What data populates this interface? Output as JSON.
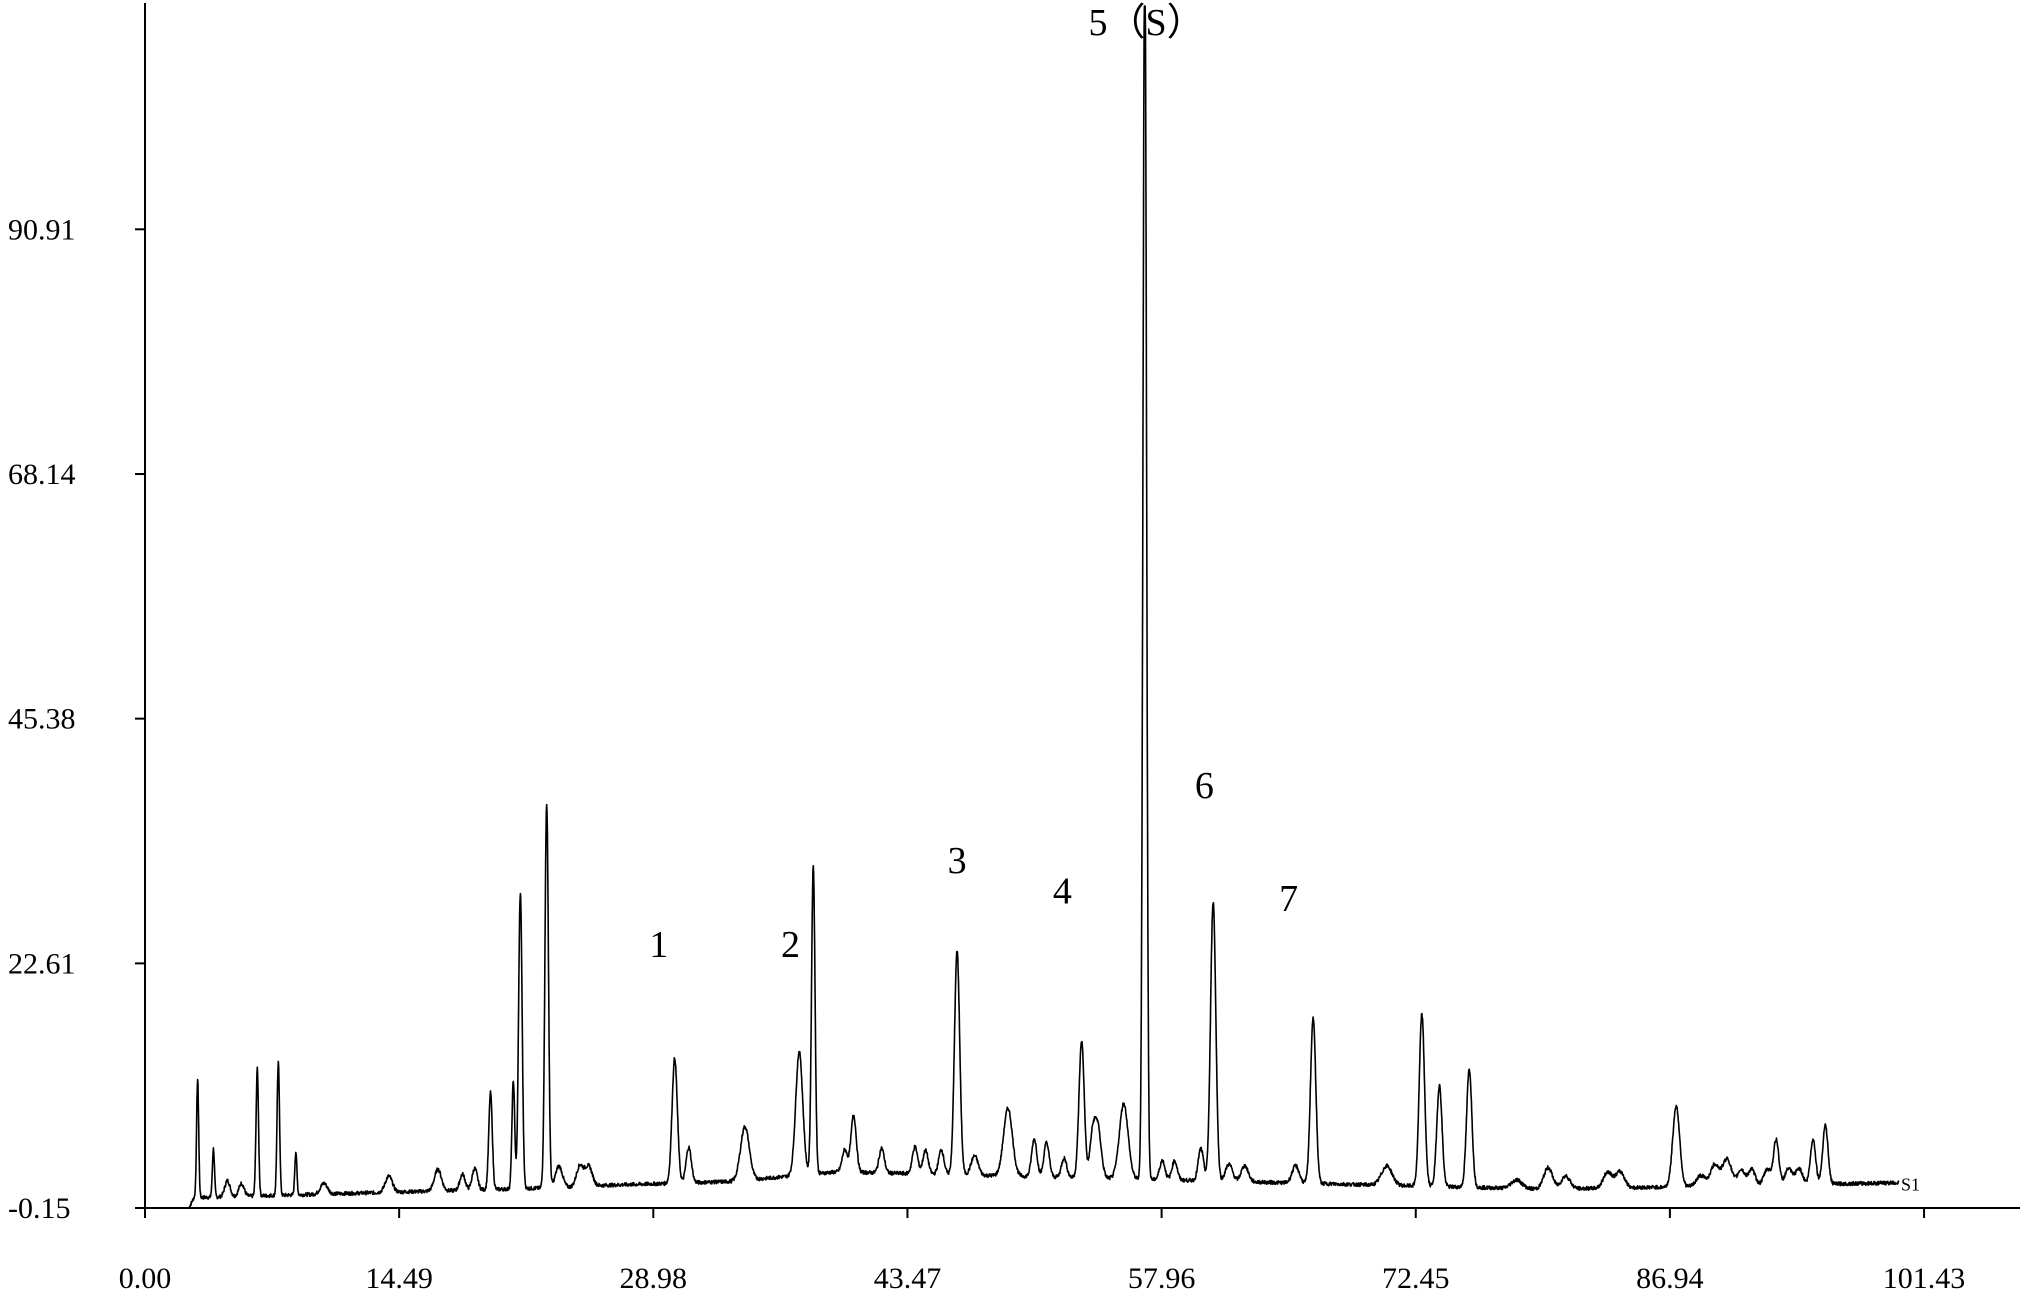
{
  "chart_data": {
    "type": "line",
    "title": "",
    "xlabel": "",
    "ylabel": "",
    "x_ticks": [
      "0.00",
      "14.49",
      "28.98",
      "43.47",
      "57.96",
      "72.45",
      "86.94",
      "101.43"
    ],
    "y_ticks": [
      "-0.15",
      "22.61",
      "45.38",
      "68.14",
      "90.91"
    ],
    "xlim": [
      0,
      106.9
    ],
    "ylim": [
      -0.15,
      111.5
    ],
    "grid": false,
    "trace_label": "S1",
    "baseline": {
      "start": 2.5,
      "end": 100.0
    },
    "peak_labels": [
      {
        "text": "1",
        "x": 29.3,
        "y": 23.2
      },
      {
        "text": "2",
        "x": 36.8,
        "y": 23.2
      },
      {
        "text": "3",
        "x": 46.3,
        "y": 31.0
      },
      {
        "text": "4",
        "x": 52.3,
        "y": 28.2
      },
      {
        "text": "5（S）",
        "x": 57.1,
        "y": 109.0
      },
      {
        "text": "6",
        "x": 60.4,
        "y": 38.0
      },
      {
        "text": "7",
        "x": 65.2,
        "y": 27.5
      }
    ],
    "peaks": [
      [
        3.0,
        11.0,
        0.06
      ],
      [
        3.9,
        4.5,
        0.06
      ],
      [
        6.4,
        11.8,
        0.07
      ],
      [
        7.6,
        12.3,
        0.07
      ],
      [
        8.6,
        4.0,
        0.06
      ],
      [
        4.7,
        1.5,
        0.15
      ],
      [
        5.5,
        1.2,
        0.15
      ],
      [
        10.2,
        1.0,
        0.2
      ],
      [
        13.9,
        1.5,
        0.2
      ],
      [
        16.7,
        2.0,
        0.2
      ],
      [
        18.1,
        1.5,
        0.15
      ],
      [
        18.8,
        2.0,
        0.15
      ],
      [
        19.7,
        9.0,
        0.1
      ],
      [
        21.0,
        10.0,
        0.08
      ],
      [
        21.4,
        27.5,
        0.1
      ],
      [
        22.9,
        35.8,
        0.1
      ],
      [
        23.6,
        2.0,
        0.2
      ],
      [
        24.8,
        2.0,
        0.2
      ],
      [
        25.3,
        1.8,
        0.2
      ],
      [
        30.2,
        11.6,
        0.15
      ],
      [
        31.0,
        3.3,
        0.15
      ],
      [
        34.2,
        5.0,
        0.25
      ],
      [
        37.3,
        11.5,
        0.2
      ],
      [
        38.1,
        28.7,
        0.1
      ],
      [
        40.4,
        5.3,
        0.15
      ],
      [
        39.9,
        2.0,
        0.15
      ],
      [
        42.0,
        2.3,
        0.15
      ],
      [
        43.9,
        2.5,
        0.15
      ],
      [
        44.5,
        2.2,
        0.15
      ],
      [
        45.4,
        2.3,
        0.15
      ],
      [
        46.3,
        20.8,
        0.15
      ],
      [
        47.3,
        1.8,
        0.2
      ],
      [
        49.2,
        6.3,
        0.25
      ],
      [
        50.7,
        3.5,
        0.15
      ],
      [
        51.4,
        3.2,
        0.15
      ],
      [
        52.4,
        1.8,
        0.15
      ],
      [
        53.4,
        12.7,
        0.15
      ],
      [
        54.3,
        5.0,
        0.2
      ],
      [
        54.0,
        3.0,
        0.15
      ],
      [
        55.8,
        7.0,
        0.25
      ],
      [
        57.0,
        116.0,
        0.1
      ],
      [
        58.0,
        1.8,
        0.15
      ],
      [
        58.7,
        1.8,
        0.15
      ],
      [
        60.2,
        3.0,
        0.15
      ],
      [
        60.9,
        26.0,
        0.15
      ],
      [
        61.8,
        1.6,
        0.2
      ],
      [
        62.7,
        1.5,
        0.2
      ],
      [
        65.6,
        1.6,
        0.2
      ],
      [
        66.6,
        15.4,
        0.15
      ],
      [
        70.8,
        1.8,
        0.3
      ],
      [
        72.8,
        16.0,
        0.15
      ],
      [
        73.8,
        9.4,
        0.15
      ],
      [
        75.5,
        11.0,
        0.15
      ],
      [
        78.2,
        0.8,
        0.3
      ],
      [
        80.0,
        2.0,
        0.25
      ],
      [
        81.0,
        1.2,
        0.25
      ],
      [
        83.4,
        1.5,
        0.25
      ],
      [
        84.1,
        1.5,
        0.25
      ],
      [
        87.3,
        7.5,
        0.2
      ],
      [
        88.7,
        1.0,
        0.25
      ],
      [
        89.5,
        2.0,
        0.25
      ],
      [
        90.2,
        2.5,
        0.25
      ],
      [
        91.0,
        1.5,
        0.2
      ],
      [
        91.6,
        1.5,
        0.2
      ],
      [
        92.5,
        1.5,
        0.2
      ],
      [
        93.0,
        4.2,
        0.15
      ],
      [
        93.7,
        1.5,
        0.2
      ],
      [
        94.3,
        1.5,
        0.2
      ],
      [
        95.1,
        4.2,
        0.15
      ],
      [
        95.8,
        5.5,
        0.15
      ]
    ]
  }
}
